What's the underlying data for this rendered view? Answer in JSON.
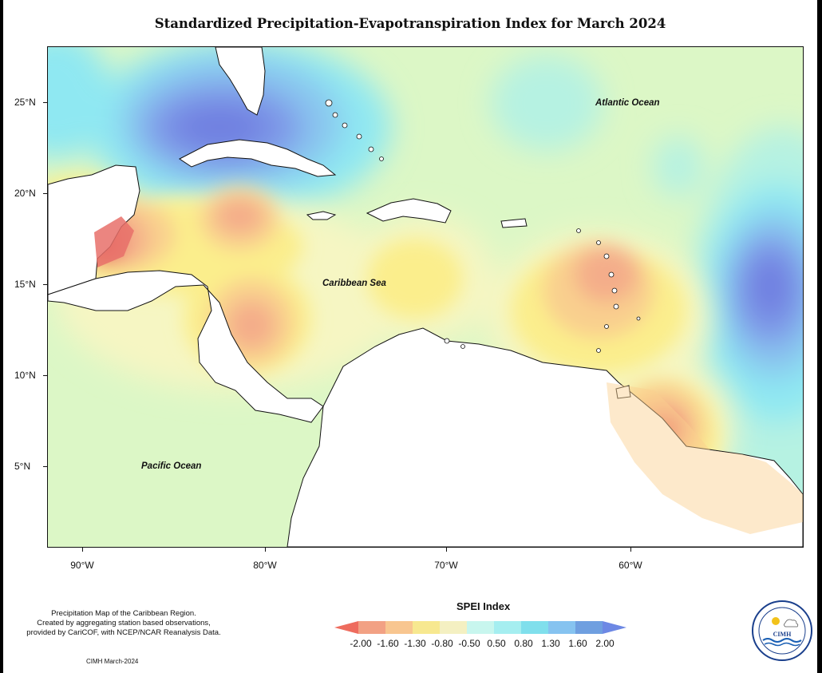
{
  "title": "Standardized Precipitation-Evapotranspiration Index for March 2024",
  "map": {
    "ocean_labels": {
      "atlantic": "Atlantic Ocean",
      "caribbean": "Caribbean Sea",
      "pacific": "Pacific Ocean"
    },
    "lat_ticks": [
      "25°N",
      "20°N",
      "15°N",
      "10°N",
      "5°N"
    ],
    "lon_ticks": [
      "90°W",
      "80°W",
      "70°W",
      "60°W"
    ],
    "colors": {
      "red": "#e8706a",
      "orange": "#f4ad8a",
      "light_orange": "#f9cf8e",
      "yellow": "#fbee8c",
      "pale_yellow": "#f6f6c3",
      "pale_green": "#dcf7c6",
      "light_cyan": "#b6f2e2",
      "cyan": "#8fe8f2",
      "light_blue": "#8ac6ef",
      "blue": "#7e98e8",
      "dark_blue": "#6f7fe0"
    }
  },
  "footnote": {
    "line1": "Precipitation Map of the Caribbean Region.",
    "line2": "Created by aggregating station based observations,",
    "line3": "provided by CariCOF, with NCEP/NCAR Reanalysis Data."
  },
  "credit": "CIMH March-2024",
  "legend": {
    "title": "SPEI Index",
    "labels": [
      "-2.00",
      "-1.60",
      "-1.30",
      "-0.80",
      "-0.50",
      "0.50",
      "0.80",
      "1.30",
      "1.60",
      "2.00"
    ],
    "colors": [
      "#ee6c5e",
      "#f2a184",
      "#f8c690",
      "#f7e890",
      "#f4f0c2",
      "#c8f6ee",
      "#a5eef0",
      "#80dfec",
      "#86c3f0",
      "#6f9fe0",
      "#6d88e4"
    ]
  },
  "logo": {
    "text": "CIMH"
  }
}
